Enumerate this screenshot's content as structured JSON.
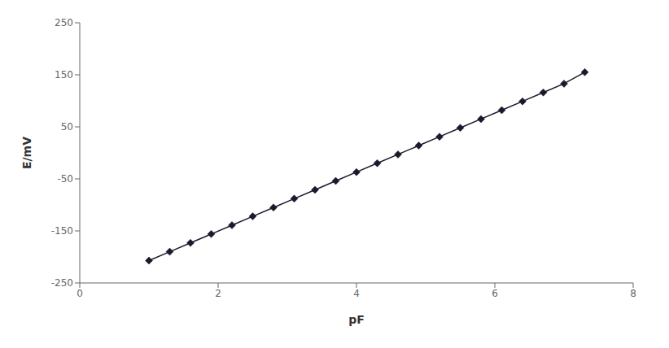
{
  "chart_data": {
    "type": "line",
    "xlabel": "pF",
    "ylabel": "E/mV",
    "x": [
      1.0,
      1.3,
      1.6,
      1.9,
      2.2,
      2.5,
      2.8,
      3.1,
      3.4,
      3.7,
      4.0,
      4.3,
      4.6,
      4.9,
      5.2,
      5.5,
      5.8,
      6.1,
      6.4,
      6.7,
      7.0,
      7.3
    ],
    "values": [
      -207,
      -190,
      -173,
      -156,
      -139,
      -122,
      -105,
      -88,
      -71,
      -54,
      -37,
      -20,
      -3,
      14,
      31,
      48,
      65,
      82,
      99,
      116,
      133,
      155
    ],
    "color": "#1a1a2e",
    "marker": "diamond",
    "xlim": [
      0,
      8
    ],
    "ylim": [
      -250,
      250
    ],
    "xticks": [
      0,
      2,
      4,
      6,
      8
    ],
    "yticks": [
      -250,
      -150,
      -50,
      50,
      150,
      250
    ],
    "grid": false
  }
}
